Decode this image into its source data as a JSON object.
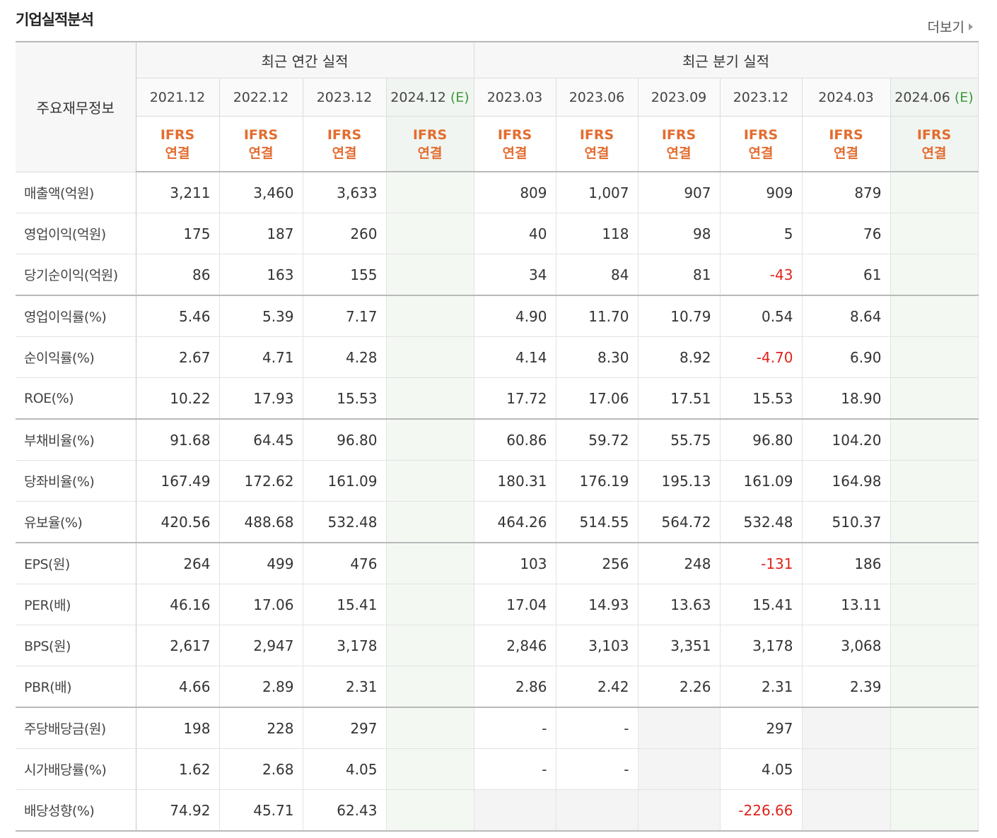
{
  "section_title": "기업실적분석",
  "more_label": "더보기",
  "table": {
    "label_header": "주요재무정보",
    "annual_group": "최근 연간 실적",
    "quarter_group": "최근 분기 실적",
    "columns": [
      {
        "date": "2021.12",
        "est": ""
      },
      {
        "date": "2022.12",
        "est": ""
      },
      {
        "date": "2023.12",
        "est": ""
      },
      {
        "date": "2024.12",
        "est": "(E)"
      },
      {
        "date": "2023.03",
        "est": ""
      },
      {
        "date": "2023.06",
        "est": ""
      },
      {
        "date": "2023.09",
        "est": ""
      },
      {
        "date": "2023.12",
        "est": ""
      },
      {
        "date": "2024.03",
        "est": ""
      },
      {
        "date": "2024.06",
        "est": "(E)"
      }
    ],
    "ifrs_line1": "IFRS",
    "ifrs_line2": "연결",
    "rows": [
      {
        "label": "매출액(억원)",
        "values": [
          "3,211",
          "3,460",
          "3,633",
          "",
          "809",
          "1,007",
          "907",
          "909",
          "879",
          ""
        ]
      },
      {
        "label": "영업이익(억원)",
        "values": [
          "175",
          "187",
          "260",
          "",
          "40",
          "118",
          "98",
          "5",
          "76",
          ""
        ]
      },
      {
        "label": "당기순이익(억원)",
        "values": [
          "86",
          "163",
          "155",
          "",
          "34",
          "84",
          "81",
          "-43",
          "61",
          ""
        ]
      },
      {
        "label": "영업이익률(%)",
        "values": [
          "5.46",
          "5.39",
          "7.17",
          "",
          "4.90",
          "11.70",
          "10.79",
          "0.54",
          "8.64",
          ""
        ]
      },
      {
        "label": "순이익률(%)",
        "values": [
          "2.67",
          "4.71",
          "4.28",
          "",
          "4.14",
          "8.30",
          "8.92",
          "-4.70",
          "6.90",
          ""
        ]
      },
      {
        "label": "ROE(%)",
        "values": [
          "10.22",
          "17.93",
          "15.53",
          "",
          "17.72",
          "17.06",
          "17.51",
          "15.53",
          "18.90",
          ""
        ]
      },
      {
        "label": "부채비율(%)",
        "values": [
          "91.68",
          "64.45",
          "96.80",
          "",
          "60.86",
          "59.72",
          "55.75",
          "96.80",
          "104.20",
          ""
        ]
      },
      {
        "label": "당좌비율(%)",
        "values": [
          "167.49",
          "172.62",
          "161.09",
          "",
          "180.31",
          "176.19",
          "195.13",
          "161.09",
          "164.98",
          ""
        ]
      },
      {
        "label": "유보율(%)",
        "values": [
          "420.56",
          "488.68",
          "532.48",
          "",
          "464.26",
          "514.55",
          "564.72",
          "532.48",
          "510.37",
          ""
        ]
      },
      {
        "label": "EPS(원)",
        "values": [
          "264",
          "499",
          "476",
          "",
          "103",
          "256",
          "248",
          "-131",
          "186",
          ""
        ]
      },
      {
        "label": "PER(배)",
        "values": [
          "46.16",
          "17.06",
          "15.41",
          "",
          "17.04",
          "14.93",
          "13.63",
          "15.41",
          "13.11",
          ""
        ]
      },
      {
        "label": "BPS(원)",
        "values": [
          "2,617",
          "2,947",
          "3,178",
          "",
          "2,846",
          "3,103",
          "3,351",
          "3,178",
          "3,068",
          ""
        ]
      },
      {
        "label": "PBR(배)",
        "values": [
          "4.66",
          "2.89",
          "2.31",
          "",
          "2.86",
          "2.42",
          "2.26",
          "2.31",
          "2.39",
          ""
        ]
      },
      {
        "label": "주당배당금(원)",
        "values": [
          "198",
          "228",
          "297",
          "",
          "-",
          "-",
          "",
          "297",
          "",
          ""
        ]
      },
      {
        "label": "시가배당률(%)",
        "values": [
          "1.62",
          "2.68",
          "4.05",
          "",
          "-",
          "-",
          "",
          "4.05",
          "",
          ""
        ]
      },
      {
        "label": "배당성향(%)",
        "values": [
          "74.92",
          "45.71",
          "62.43",
          "",
          "",
          "",
          "",
          "-226.66",
          "",
          ""
        ]
      }
    ],
    "group_end_rows": [
      2,
      5,
      8,
      12
    ]
  }
}
